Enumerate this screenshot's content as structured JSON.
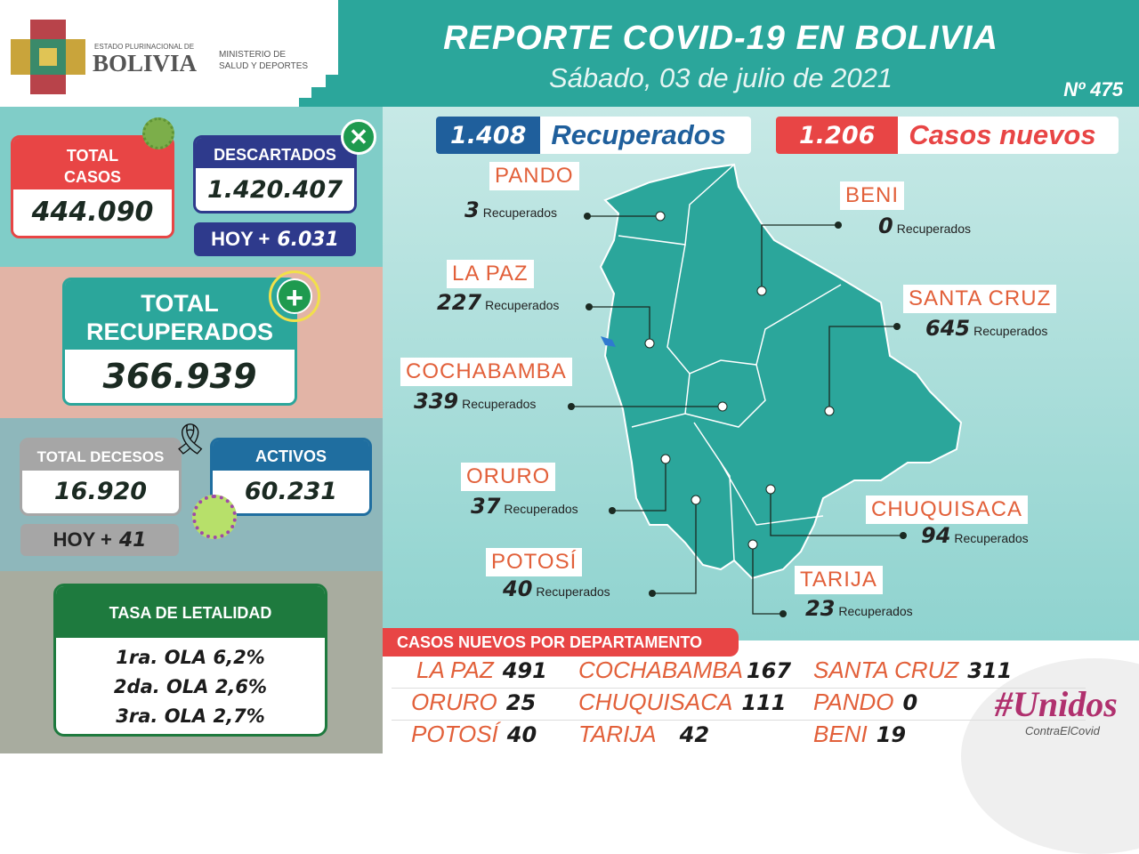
{
  "header": {
    "logo_small": "ESTADO PLURINACIONAL DE",
    "logo_big": "BOLIVIA",
    "ministry_line1": "MINISTERIO DE",
    "ministry_line2": "SALUD Y DEPORTES",
    "title": "REPORTE COVID-19 EN BOLIVIA",
    "date": "Sábado, 03 de julio de 2021",
    "number": "Nº 475"
  },
  "total_casos": {
    "label1": "TOTAL",
    "label2": "CASOS",
    "value": "444.090"
  },
  "descartados": {
    "label": "DESCARTADOS",
    "value": "1.420.407",
    "hoy_label": "HOY +",
    "hoy_value": "6.031"
  },
  "total_recuperados": {
    "label1": "TOTAL",
    "label2": "RECUPERADOS",
    "value": "366.939"
  },
  "decesos": {
    "label": "TOTAL DECESOS",
    "value": "16.920",
    "hoy_label": "HOY +",
    "hoy_value": "41"
  },
  "activos": {
    "label": "ACTIVOS",
    "value": "60.231"
  },
  "letalidad": {
    "title": "TASA DE LETALIDAD",
    "lines": [
      "1ra. OLA 6,2%",
      "2da. OLA 2,6%",
      "3ra. OLA 2,7%"
    ]
  },
  "badges": {
    "recuperados_value": "1.408",
    "recuperados_label": "Recuperados",
    "nuevos_value": "1.206",
    "nuevos_label": "Casos nuevos"
  },
  "rec_word": "Recuperados",
  "map_departments": [
    {
      "name": "PANDO",
      "value": "3"
    },
    {
      "name": "BENI",
      "value": "0"
    },
    {
      "name": "LA PAZ",
      "value": "227"
    },
    {
      "name": "SANTA CRUZ",
      "value": "645"
    },
    {
      "name": "COCHABAMBA",
      "value": "339"
    },
    {
      "name": "ORURO",
      "value": "37"
    },
    {
      "name": "CHUQUISACA",
      "value": "94"
    },
    {
      "name": "POTOSÍ",
      "value": "40"
    },
    {
      "name": "TARIJA",
      "value": "23"
    }
  ],
  "casos_nuevos": {
    "title": "CASOS NUEVOS POR DEPARTAMENTO",
    "rows": [
      [
        {
          "name": "LA PAZ",
          "value": "491"
        },
        {
          "name": "COCHABAMBA",
          "value": "167"
        },
        {
          "name": "SANTA CRUZ",
          "value": "311"
        }
      ],
      [
        {
          "name": "ORURO",
          "value": "25"
        },
        {
          "name": "CHUQUISACA",
          "value": "111"
        },
        {
          "name": "PANDO",
          "value": "0"
        }
      ],
      [
        {
          "name": "POTOSÍ",
          "value": "40"
        },
        {
          "name": "TARIJA",
          "value": "42"
        },
        {
          "name": "BENI",
          "value": "19"
        }
      ]
    ]
  },
  "campaign": {
    "hashtag": "#Unidos",
    "sub": "ContraElCovid"
  },
  "colors": {
    "teal": "#2ba69b",
    "red": "#e84545",
    "navy": "#2e3a8c",
    "green": "#1e7a3e",
    "orange": "#e2603a",
    "blue": "#1f5f9c"
  }
}
